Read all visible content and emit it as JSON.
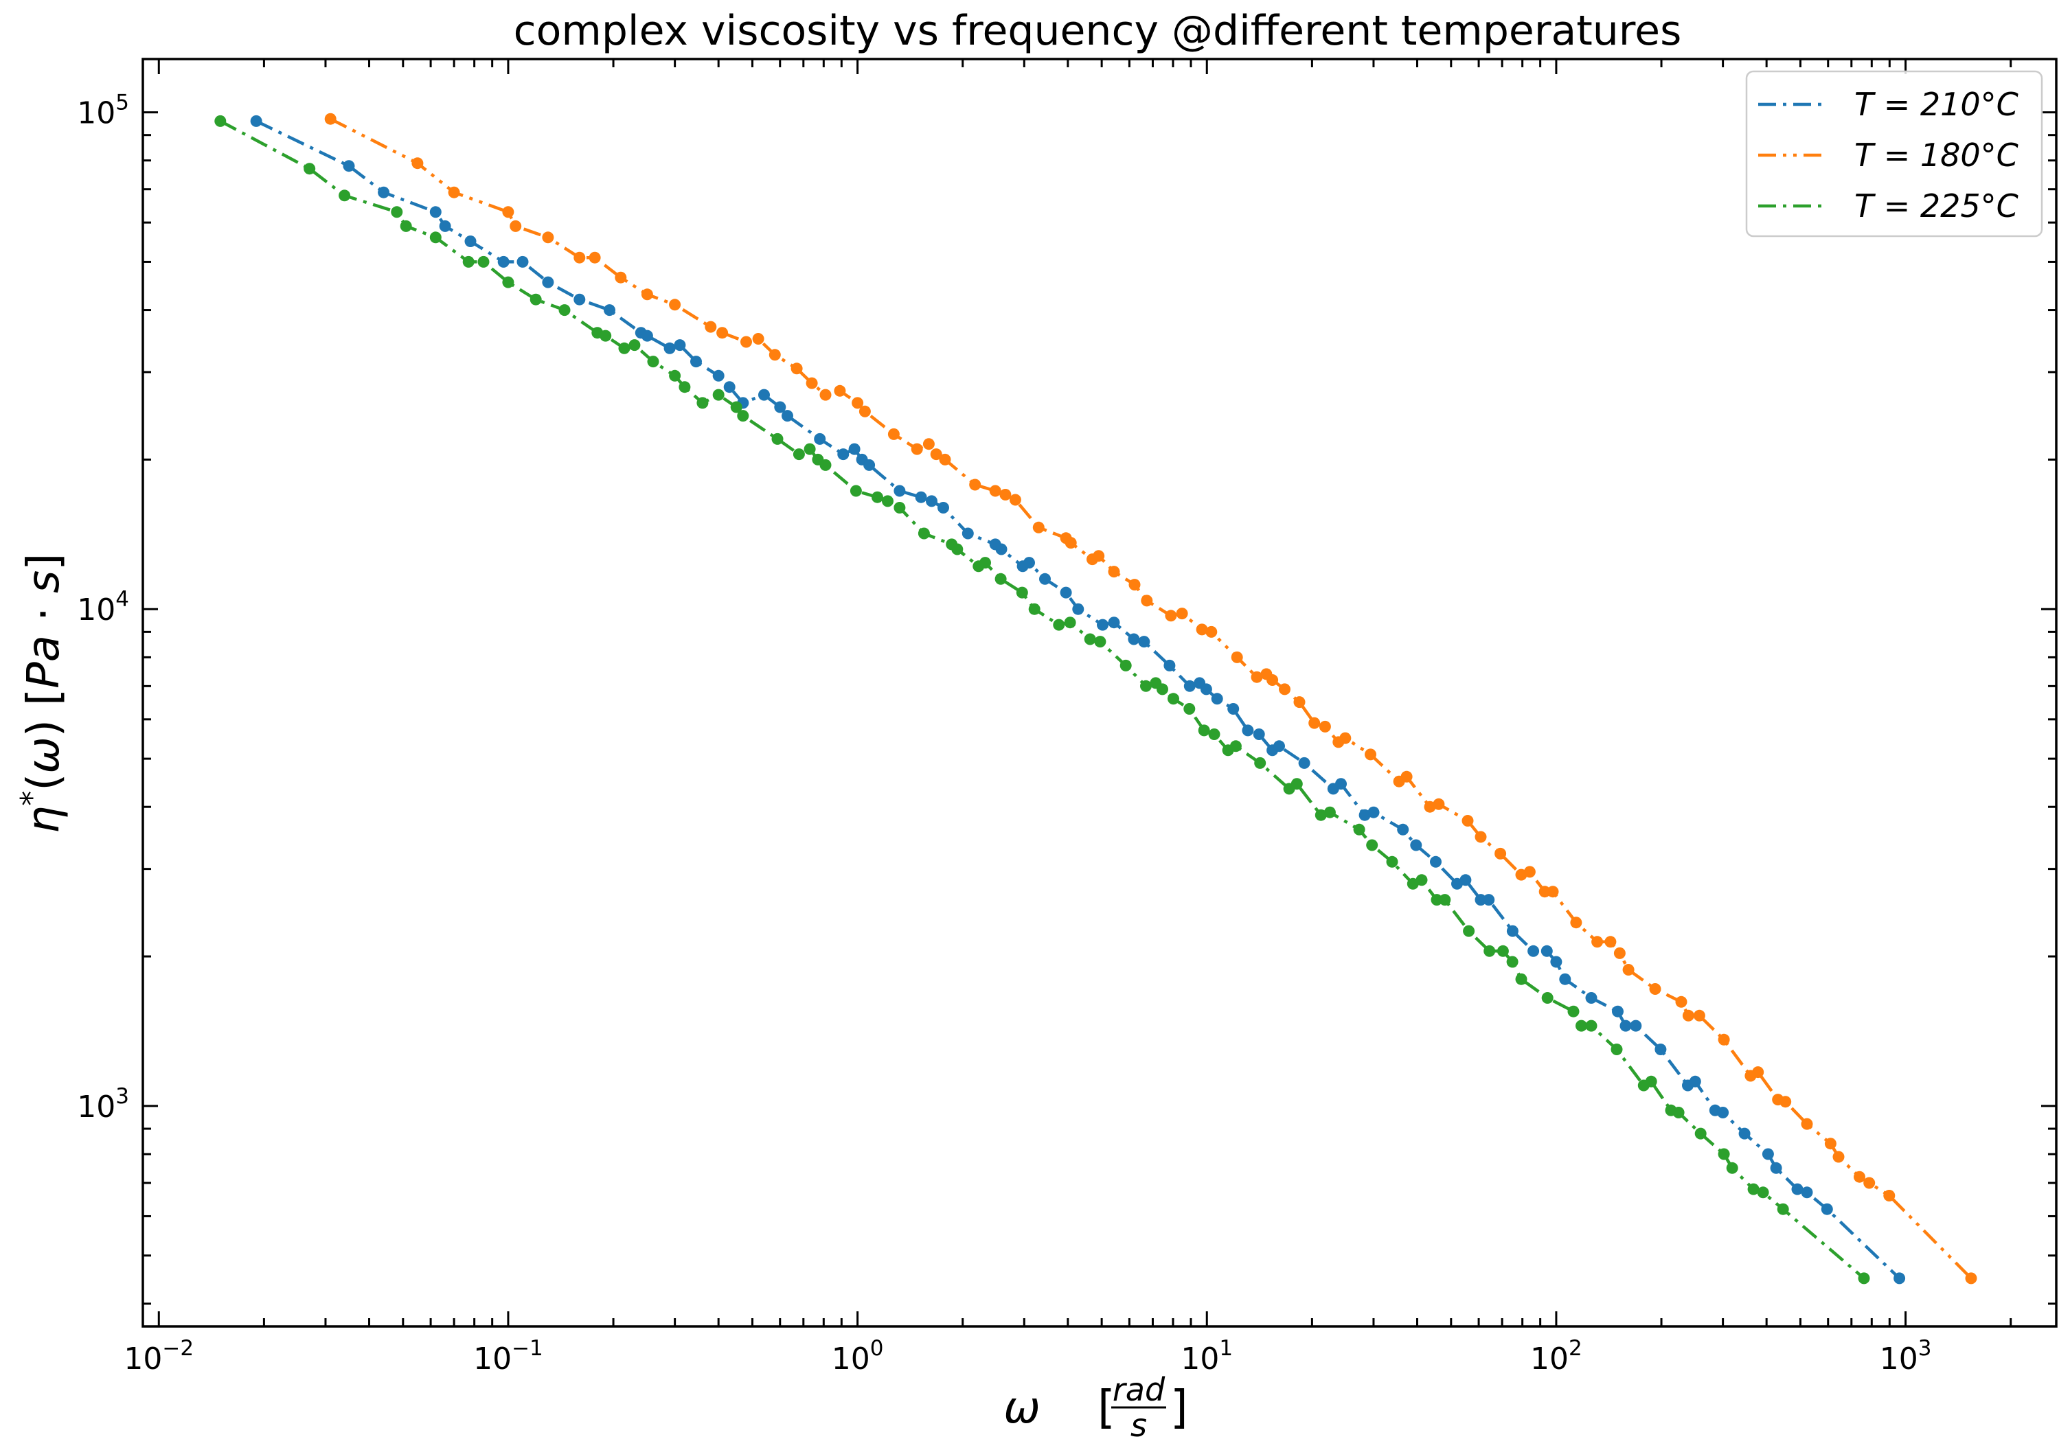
{
  "chart_data": {
    "type": "line",
    "title": "complex viscosity vs frequency @different temperatures",
    "xlabel": "ω    [rad/s]",
    "ylabel": "η*(ω)    [Pa · s]",
    "xscale": "log",
    "yscale": "log",
    "xlim": [
      0.009,
      2700
    ],
    "ylim": [
      360,
      128000
    ],
    "x_ticks": [
      {
        "base": "10",
        "exp": "−2",
        "value": 0.01
      },
      {
        "base": "10",
        "exp": "−1",
        "value": 0.1
      },
      {
        "base": "10",
        "exp": "0",
        "value": 1
      },
      {
        "base": "10",
        "exp": "1",
        "value": 10
      },
      {
        "base": "10",
        "exp": "2",
        "value": 100
      },
      {
        "base": "10",
        "exp": "3",
        "value": 1000
      }
    ],
    "y_ticks": [
      {
        "base": "10",
        "exp": "3",
        "value": 1000
      },
      {
        "base": "10",
        "exp": "4",
        "value": 10000
      },
      {
        "base": "10",
        "exp": "5",
        "value": 100000
      }
    ],
    "grid": false,
    "legend_position": "top-right",
    "series": [
      {
        "name": "T = 210°C",
        "color": "#1f77b4",
        "line_style": "dash-dot",
        "points": [
          [
            0.019,
            96000
          ],
          [
            0.035,
            78000
          ],
          [
            0.044,
            69000
          ],
          [
            0.062,
            63000
          ],
          [
            0.066,
            59000
          ],
          [
            0.078,
            55000
          ],
          [
            0.097,
            50000
          ],
          [
            0.11,
            50000
          ],
          [
            0.13,
            45500
          ],
          [
            0.16,
            42000
          ],
          [
            0.195,
            40000
          ],
          [
            0.24,
            36000
          ],
          [
            0.25,
            35500
          ],
          [
            0.29,
            33500
          ],
          [
            0.31,
            34000
          ],
          [
            0.345,
            31500
          ],
          [
            0.4,
            29500
          ],
          [
            0.43,
            28000
          ],
          [
            0.47,
            26000
          ],
          [
            0.54,
            27000
          ],
          [
            0.6,
            25500
          ],
          [
            0.63,
            24500
          ],
          [
            0.78,
            22000
          ],
          [
            0.91,
            20500
          ],
          [
            0.98,
            21000
          ],
          [
            1.03,
            20000
          ],
          [
            1.08,
            19500
          ],
          [
            1.32,
            17300
          ],
          [
            1.52,
            16800
          ],
          [
            1.63,
            16500
          ],
          [
            1.76,
            16000
          ],
          [
            2.07,
            14200
          ],
          [
            2.48,
            13500
          ],
          [
            2.58,
            13200
          ],
          [
            2.97,
            12200
          ],
          [
            3.1,
            12400
          ],
          [
            3.44,
            11500
          ],
          [
            3.95,
            10800
          ],
          [
            4.28,
            10000
          ],
          [
            5.03,
            9300
          ],
          [
            5.42,
            9400
          ],
          [
            6.18,
            8700
          ],
          [
            6.61,
            8600
          ],
          [
            7.82,
            7700
          ],
          [
            8.93,
            7000
          ],
          [
            9.53,
            7100
          ],
          [
            9.96,
            6900
          ],
          [
            10.7,
            6600
          ],
          [
            11.9,
            6300
          ],
          [
            13.1,
            5700
          ],
          [
            14.1,
            5600
          ],
          [
            15.4,
            5200
          ],
          [
            16.1,
            5300
          ],
          [
            19.0,
            4900
          ],
          [
            23.0,
            4350
          ],
          [
            24.2,
            4450
          ],
          [
            28.3,
            3850
          ],
          [
            30.0,
            3900
          ],
          [
            36.4,
            3600
          ],
          [
            39.7,
            3350
          ],
          [
            45.2,
            3100
          ],
          [
            52.0,
            2800
          ],
          [
            55.0,
            2850
          ],
          [
            60.8,
            2600
          ],
          [
            64.1,
            2600
          ],
          [
            75.0,
            2250
          ],
          [
            86.0,
            2050
          ],
          [
            94.0,
            2050
          ],
          [
            100.0,
            1950
          ],
          [
            106.0,
            1800
          ],
          [
            126.0,
            1650
          ],
          [
            150.0,
            1550
          ],
          [
            158.0,
            1450
          ],
          [
            169.0,
            1450
          ],
          [
            199.0,
            1300
          ],
          [
            238.0,
            1100
          ],
          [
            250.0,
            1120
          ],
          [
            285.0,
            980
          ],
          [
            300.0,
            970
          ],
          [
            346.0,
            880
          ],
          [
            404.0,
            800
          ],
          [
            426.0,
            750
          ],
          [
            490.0,
            680
          ],
          [
            522.0,
            670
          ],
          [
            596.0,
            620
          ],
          [
            960.0,
            450
          ]
        ]
      },
      {
        "name": "T = 180°C",
        "color": "#ff7f0e",
        "line_style": "dash-dot-dot",
        "points": [
          [
            0.031,
            97000
          ],
          [
            0.055,
            79000
          ],
          [
            0.07,
            69000
          ],
          [
            0.1,
            63000
          ],
          [
            0.105,
            59000
          ],
          [
            0.13,
            56000
          ],
          [
            0.16,
            51000
          ],
          [
            0.177,
            51000
          ],
          [
            0.21,
            46500
          ],
          [
            0.25,
            43000
          ],
          [
            0.3,
            41000
          ],
          [
            0.38,
            37000
          ],
          [
            0.41,
            36000
          ],
          [
            0.48,
            34500
          ],
          [
            0.52,
            35000
          ],
          [
            0.58,
            32500
          ],
          [
            0.67,
            30500
          ],
          [
            0.74,
            28500
          ],
          [
            0.81,
            27000
          ],
          [
            0.89,
            27500
          ],
          [
            1.0,
            26000
          ],
          [
            1.05,
            25000
          ],
          [
            1.27,
            22500
          ],
          [
            1.48,
            21000
          ],
          [
            1.6,
            21500
          ],
          [
            1.68,
            20500
          ],
          [
            1.78,
            20000
          ],
          [
            2.17,
            17800
          ],
          [
            2.48,
            17300
          ],
          [
            2.65,
            17000
          ],
          [
            2.83,
            16600
          ],
          [
            3.3,
            14600
          ],
          [
            3.95,
            13900
          ],
          [
            4.08,
            13600
          ],
          [
            4.7,
            12600
          ],
          [
            4.9,
            12800
          ],
          [
            5.42,
            11900
          ],
          [
            6.21,
            11200
          ],
          [
            6.73,
            10400
          ],
          [
            7.89,
            9700
          ],
          [
            8.49,
            9800
          ],
          [
            9.68,
            9100
          ],
          [
            10.3,
            9000
          ],
          [
            12.2,
            8000
          ],
          [
            13.9,
            7300
          ],
          [
            14.8,
            7400
          ],
          [
            15.4,
            7200
          ],
          [
            16.7,
            6900
          ],
          [
            18.4,
            6500
          ],
          [
            20.3,
            5900
          ],
          [
            21.8,
            5800
          ],
          [
            23.8,
            5400
          ],
          [
            24.9,
            5500
          ],
          [
            29.4,
            5100
          ],
          [
            35.5,
            4500
          ],
          [
            37.3,
            4600
          ],
          [
            43.5,
            4000
          ],
          [
            46.1,
            4050
          ],
          [
            55.8,
            3750
          ],
          [
            60.8,
            3480
          ],
          [
            69.2,
            3220
          ],
          [
            79.4,
            2920
          ],
          [
            84.0,
            2960
          ],
          [
            92.7,
            2700
          ],
          [
            97.8,
            2700
          ],
          [
            114.0,
            2340
          ],
          [
            131.0,
            2140
          ],
          [
            143.0,
            2140
          ],
          [
            152.0,
            2030
          ],
          [
            161.0,
            1880
          ],
          [
            192.0,
            1720
          ],
          [
            228.0,
            1620
          ],
          [
            239.0,
            1520
          ],
          [
            257.0,
            1520
          ],
          [
            302.0,
            1360
          ],
          [
            360.0,
            1150
          ],
          [
            378.0,
            1170
          ],
          [
            431.0,
            1030
          ],
          [
            453.0,
            1020
          ],
          [
            522.0,
            920
          ],
          [
            610.0,
            840
          ],
          [
            643.0,
            790
          ],
          [
            738.0,
            720
          ],
          [
            787.0,
            700
          ],
          [
            898.0,
            660
          ],
          [
            1540.0,
            450
          ]
        ]
      },
      {
        "name": "T = 225°C",
        "color": "#2ca02c",
        "line_style": "dash-dot",
        "points": [
          [
            0.015,
            96000
          ],
          [
            0.027,
            77000
          ],
          [
            0.034,
            68000
          ],
          [
            0.048,
            63000
          ],
          [
            0.051,
            59000
          ],
          [
            0.062,
            56000
          ],
          [
            0.077,
            50000
          ],
          [
            0.085,
            50000
          ],
          [
            0.1,
            45500
          ],
          [
            0.12,
            42000
          ],
          [
            0.145,
            40000
          ],
          [
            0.18,
            36000
          ],
          [
            0.19,
            35500
          ],
          [
            0.215,
            33500
          ],
          [
            0.23,
            34000
          ],
          [
            0.26,
            31500
          ],
          [
            0.3,
            29500
          ],
          [
            0.32,
            28000
          ],
          [
            0.36,
            26000
          ],
          [
            0.4,
            27000
          ],
          [
            0.45,
            25500
          ],
          [
            0.47,
            24500
          ],
          [
            0.59,
            22000
          ],
          [
            0.68,
            20500
          ],
          [
            0.73,
            21000
          ],
          [
            0.77,
            20000
          ],
          [
            0.81,
            19500
          ],
          [
            0.99,
            17300
          ],
          [
            1.14,
            16800
          ],
          [
            1.22,
            16500
          ],
          [
            1.32,
            16000
          ],
          [
            1.55,
            14200
          ],
          [
            1.86,
            13500
          ],
          [
            1.93,
            13200
          ],
          [
            2.22,
            12200
          ],
          [
            2.32,
            12400
          ],
          [
            2.57,
            11500
          ],
          [
            2.96,
            10800
          ],
          [
            3.21,
            10000
          ],
          [
            3.77,
            9300
          ],
          [
            4.06,
            9400
          ],
          [
            4.63,
            8700
          ],
          [
            4.95,
            8600
          ],
          [
            5.86,
            7700
          ],
          [
            6.69,
            7000
          ],
          [
            7.14,
            7100
          ],
          [
            7.46,
            6900
          ],
          [
            8.02,
            6600
          ],
          [
            8.91,
            6300
          ],
          [
            9.82,
            5700
          ],
          [
            10.5,
            5600
          ],
          [
            11.5,
            5200
          ],
          [
            12.1,
            5300
          ],
          [
            14.2,
            4900
          ],
          [
            17.2,
            4350
          ],
          [
            18.1,
            4450
          ],
          [
            21.2,
            3850
          ],
          [
            22.5,
            3900
          ],
          [
            27.3,
            3600
          ],
          [
            29.7,
            3350
          ],
          [
            33.9,
            3100
          ],
          [
            38.9,
            2800
          ],
          [
            41.2,
            2850
          ],
          [
            45.5,
            2600
          ],
          [
            48.0,
            2600
          ],
          [
            56.2,
            2250
          ],
          [
            64.4,
            2050
          ],
          [
            70.4,
            2050
          ],
          [
            74.9,
            1950
          ],
          [
            79.4,
            1800
          ],
          [
            94.4,
            1650
          ],
          [
            112.0,
            1550
          ],
          [
            118.0,
            1450
          ],
          [
            126.0,
            1450
          ],
          [
            149.0,
            1300
          ],
          [
            178.0,
            1100
          ],
          [
            187.0,
            1120
          ],
          [
            213.0,
            980
          ],
          [
            224.0,
            970
          ],
          [
            259.0,
            880
          ],
          [
            302.0,
            800
          ],
          [
            319.0,
            750
          ],
          [
            367.0,
            680
          ],
          [
            391.0,
            670
          ],
          [
            446.0,
            620
          ],
          [
            760.0,
            450
          ]
        ]
      }
    ]
  }
}
